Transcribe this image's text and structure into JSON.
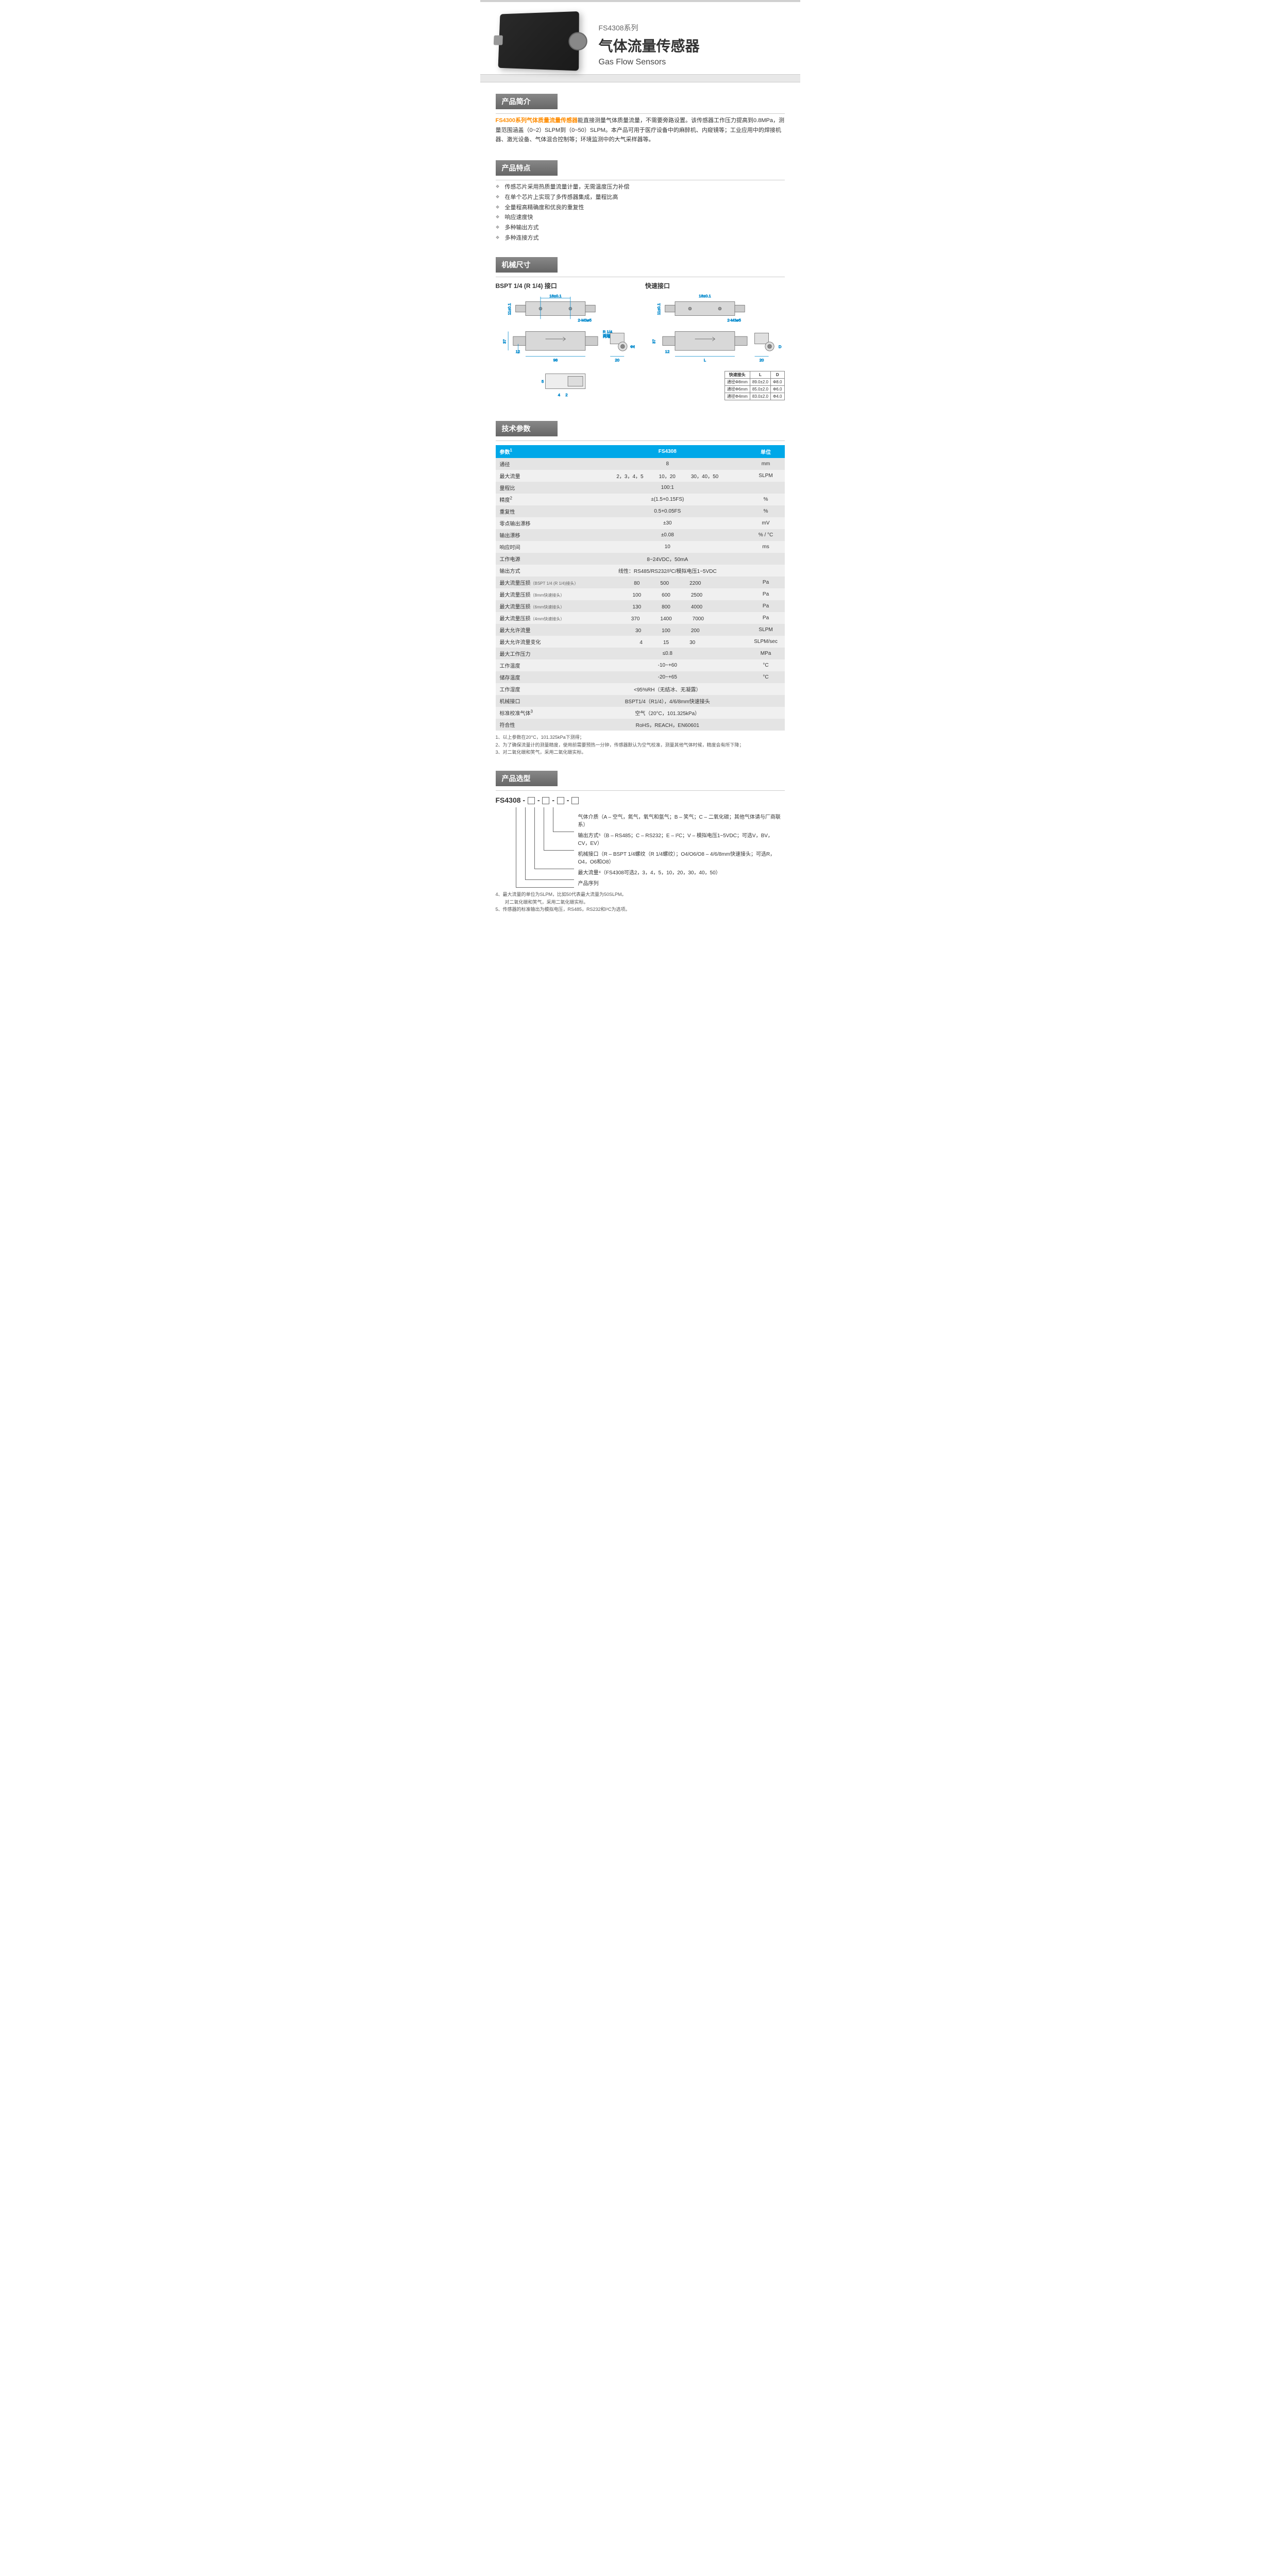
{
  "header": {
    "series": "FS4308系列",
    "title_cn": "气体流量传感器",
    "title_en": "Gas Flow Sensors"
  },
  "sections": {
    "intro_hdr": "产品简介",
    "features_hdr": "产品特点",
    "mech_hdr": "机械尺寸",
    "spec_hdr": "技术参数",
    "selection_hdr": "产品选型"
  },
  "intro": {
    "highlight": "FS4300系列气体质量流量传感器",
    "text": "能直接测量气体质量流量，不需要旁路设置。该传感器工作压力提高到0.8MPa，测量范围涵盖（0~2）SLPM到（0~50）SLPM。本产品可用于医疗设备中的麻醉机、内窥镜等；工业应用中的焊接机器、激光设备、气体混合控制等；环境监测中的大气采样器等。"
  },
  "features": [
    "传感芯片采用热质量流量计量，无需温度压力补偿",
    "在单个芯片上实现了多传感器集成，量程比高",
    "全量程高精确度和优良的重复性",
    "响应速度快",
    "多种输出方式",
    "多种连接方式"
  ],
  "diagrams": {
    "left_title": "BSPT 1/4 (R 1/4) 接口",
    "right_title": "快速接口",
    "dims": {
      "d18": "18±0.1",
      "d11": "11±0.1",
      "d2m3": "2-M3⌀5",
      "r14": "R 1/4",
      "r14b": "两端",
      "d37": "37",
      "d12": "12",
      "d98": "98",
      "d20": "20",
      "phi8": "Φ8",
      "d5": "5",
      "d4": "4",
      "d2": "2",
      "dL": "L",
      "dD": "D"
    },
    "quick_table": {
      "h1": "快速接头",
      "h2": "L",
      "h3": "D",
      "r1": [
        "通径Φ8mm",
        "89.0±2.0",
        "Φ8.0"
      ],
      "r2": [
        "通径Φ6mm",
        "85.0±2.0",
        "Φ6.0"
      ],
      "r3": [
        "通径Φ4mm",
        "83.0±2.0",
        "Φ4.0"
      ]
    }
  },
  "spec": {
    "th_param": "参数",
    "th_model": "FS4308",
    "th_unit": "单位",
    "rows": [
      {
        "p": "通径",
        "v": "8",
        "u": "mm"
      },
      {
        "p": "最大流量",
        "v": "2，3，4，5　　　10，20　　　30，40，50",
        "u": "SLPM"
      },
      {
        "p": "量程比",
        "v": "100:1",
        "u": ""
      },
      {
        "p": "精度",
        "sup": "2",
        "v": "±(1.5+0.15FS)",
        "u": "%"
      },
      {
        "p": "重复性",
        "v": "0.5+0.05FS",
        "u": "%"
      },
      {
        "p": "零点输出漂移",
        "v": "±30",
        "u": "mV"
      },
      {
        "p": "输出漂移",
        "v": "±0.08",
        "u": "% / °C"
      },
      {
        "p": "响应时间",
        "v": "10",
        "u": "ms"
      },
      {
        "p": "工作电源",
        "v": "8~24VDC，50mA",
        "u": ""
      },
      {
        "p": "输出方式",
        "v": "线性：RS485/RS232/I²C/模拟电压1~5VDC",
        "u": ""
      },
      {
        "p": "最大流量压损",
        "sub": "（BSPT 1/4 (R 1/4)接头）",
        "v": "80　　　　500　　　　2200",
        "u": "Pa"
      },
      {
        "p": "最大流量压损",
        "sub": "（8mm快速接头）",
        "v": "100　　　　600　　　　2500",
        "u": "Pa"
      },
      {
        "p": "最大流量压损",
        "sub": "（6mm快速接头）",
        "v": "130　　　　800　　　　4000",
        "u": "Pa"
      },
      {
        "p": "最大流量压损",
        "sub": "（4mm快速接头）",
        "v": "370　　　　1400　　　　7000",
        "u": "Pa"
      },
      {
        "p": "最大允许流量",
        "v": "30　　　　100　　　　200",
        "u": "SLPM"
      },
      {
        "p": "最大允许流量变化",
        "v": "4　　　　15　　　　30",
        "u": "SLPM/sec"
      },
      {
        "p": "最大工作压力",
        "v": "≤0.8",
        "u": "MPa"
      },
      {
        "p": "工作温度",
        "v": "-10~+60",
        "u": "°C"
      },
      {
        "p": "储存温度",
        "v": "-20~+65",
        "u": "°C"
      },
      {
        "p": "工作湿度",
        "v": "<95%RH（无结冰、无凝露）",
        "u": ""
      },
      {
        "p": "机械接口",
        "v": "BSPT1/4（R1/4），4/6/8mm快速接头",
        "u": ""
      },
      {
        "p": "标准校准气体",
        "sup": "3",
        "v": "空气（20°C，101.325kPa）",
        "u": ""
      },
      {
        "p": "符合性",
        "v": "RoHS，REACH，EN60601",
        "u": ""
      }
    ]
  },
  "spec_notes": [
    "1、以上参数在20°C，101.325kPa下测得；",
    "2、为了确保流量计的测量精度，使用前需要预热一分钟，传感器默认为空气校准，测量其他气体时候，精度会有所下降；",
    "3、对二氧化碳和笑气，采用二氧化碳实标。"
  ],
  "selection": {
    "code": "FS4308 - ",
    "lines": [
      "气体介质（A – 空气，氮气，氧气和氩气；B – 笑气；C – 二氧化碳；其他气体请与厂商联系）",
      "输出方式⁵（B – RS485；C – RS232；E – I²C；V – 模拟电压1~5VDC；可选V，BV，CV，EV）",
      "机械接口（R – BSPT 1/4螺纹（R 1/4螺纹）；O4/O6/O8 – 4/6/8mm快速接头；可选R，O4，O6和O8）",
      "最大流量⁴（FS4308可选2，3，4，5，10，20，30，40，50）",
      "产品序列"
    ]
  },
  "footer_notes": [
    "4、最大流量的单位为SLPM，比如50代表最大流量为50SLPM。",
    "　　对二氧化碳和笑气，采用二氧化碳实标。",
    "5、传感器的标准输出为模拟电压，RS485，RS232和I²C为选项。"
  ]
}
